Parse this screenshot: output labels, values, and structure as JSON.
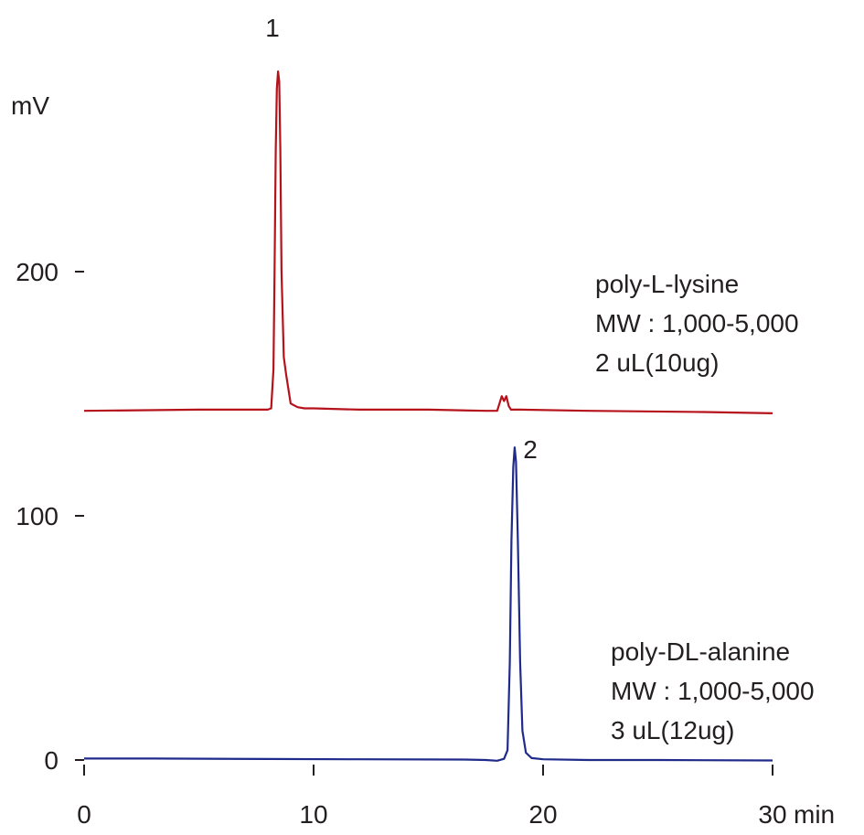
{
  "chart_data": {
    "type": "line",
    "xlabel": "min",
    "ylabel": "mV",
    "xlim": [
      0,
      30
    ],
    "ylim": [
      -8,
      290
    ],
    "x_ticks": [
      "0",
      "10",
      "20",
      "30"
    ],
    "y_ticks": [
      "0",
      "100",
      "200"
    ],
    "grid": false,
    "colors": {
      "red": "#b5121b",
      "blue": "#1f2a8a"
    },
    "series": [
      {
        "color": "#b5121b",
        "x": [
          0,
          5,
          8.0,
          8.15,
          8.25,
          8.3,
          8.35,
          8.4,
          8.45,
          8.5,
          8.55,
          8.6,
          8.7,
          8.8,
          8.9,
          9.0,
          9.3,
          9.6,
          10,
          12,
          15,
          17.5,
          18.0,
          18.1,
          18.2,
          18.3,
          18.4,
          18.5,
          18.6,
          19,
          22,
          27,
          30
        ],
        "y": [
          143,
          143.5,
          143.5,
          144,
          160,
          200,
          250,
          275,
          282,
          278,
          250,
          200,
          165,
          158,
          152,
          146,
          144.5,
          144,
          144,
          143.5,
          143.5,
          143,
          143,
          146,
          149,
          147,
          149,
          145,
          143.5,
          143.5,
          143,
          142.5,
          142
        ]
      },
      {
        "color": "#1f2a8a",
        "x": [
          0,
          3,
          8,
          12,
          16.5,
          17.5,
          18.0,
          18.3,
          18.45,
          18.55,
          18.62,
          18.7,
          18.76,
          18.82,
          18.9,
          19.0,
          19.1,
          19.25,
          19.5,
          20,
          22,
          25,
          30
        ],
        "y": [
          0.6,
          0.6,
          0.4,
          0.3,
          0.2,
          0,
          -0.3,
          0.5,
          4,
          40,
          90,
          120,
          128,
          122,
          90,
          40,
          12,
          3,
          0.8,
          0.3,
          0,
          0,
          -0.2
        ]
      }
    ],
    "annotations": {
      "peak1": {
        "label": "1",
        "x": 8.35,
        "y": 296
      },
      "peak2": {
        "label": "2",
        "x": 19.3,
        "y": 131
      },
      "sample1_lines": [
        "poly-L-lysine",
        "MW : 1,000-5,000",
        "2 uL(10ug)"
      ],
      "sample2_lines": [
        "poly-DL-alanine",
        "MW : 1,000-5,000",
        "3 uL(12ug)"
      ]
    }
  }
}
